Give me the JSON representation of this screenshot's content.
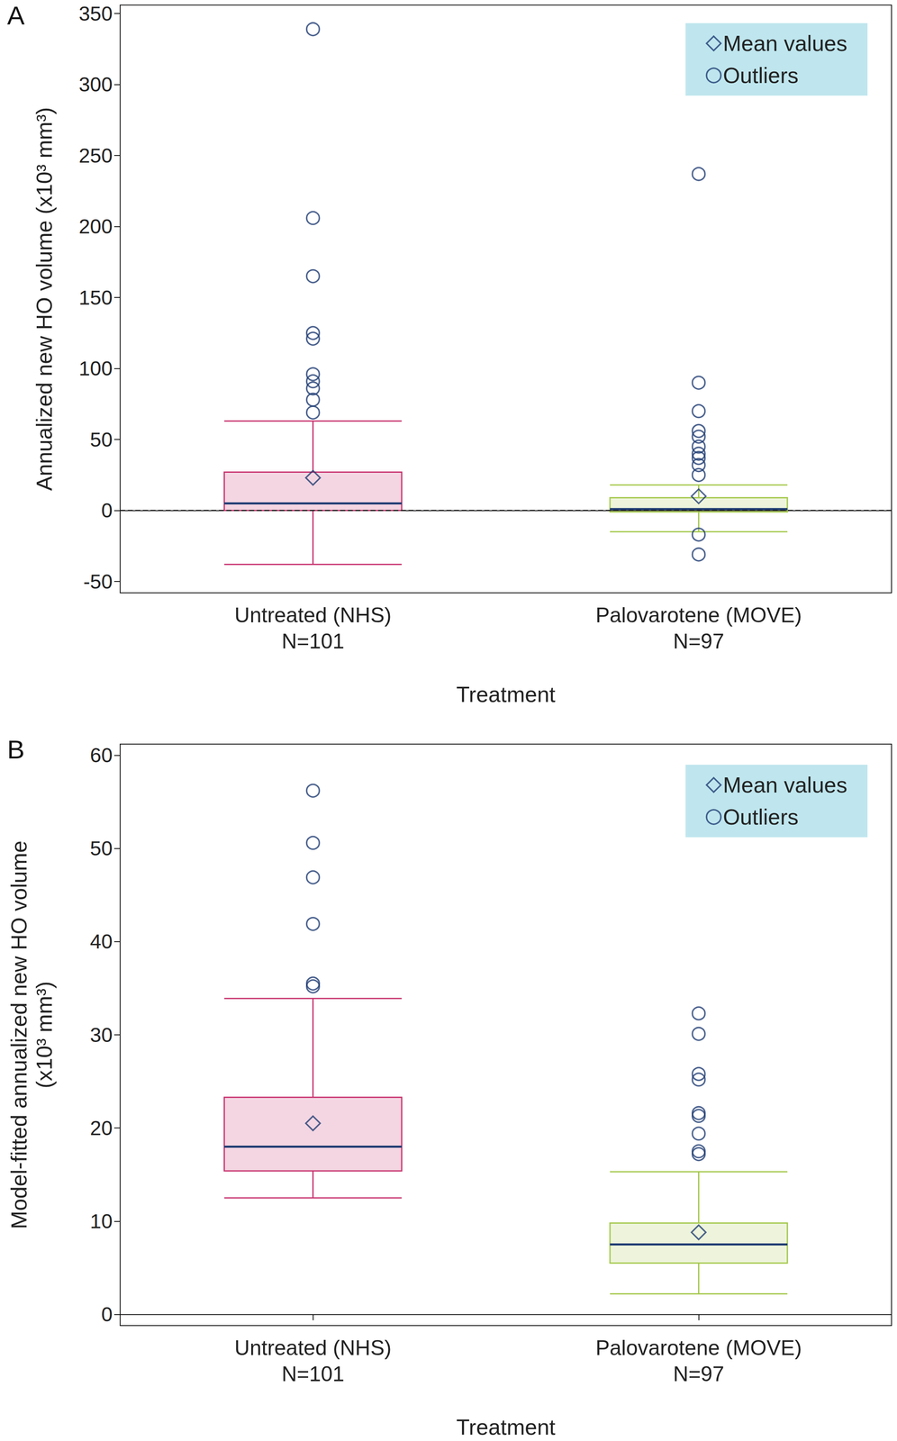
{
  "chart_data": [
    {
      "type": "boxplot",
      "panel": "A",
      "x_label": "Treatment",
      "y_label": "Annualized new HO volume (x10³ mm³)",
      "categories": [
        "Untreated (NHS)\nN=101",
        "Palovarotene (MOVE)\nN=97"
      ],
      "colors": [
        "#c8326e",
        "#a4c84a"
      ],
      "boxes": [
        {
          "low": -38,
          "q1": 0,
          "median": 5,
          "q3": 27,
          "high": 63
        },
        {
          "low": -15,
          "q1": -1,
          "median": 1,
          "q3": 9,
          "high": 18
        }
      ],
      "series": [
        {
          "name": "Mean values",
          "type": "scatter",
          "marker": "diamond",
          "color": "#1f3c73",
          "values": [
            23,
            10
          ]
        },
        {
          "name": "Outliers",
          "type": "scatter",
          "marker": "circle",
          "color": "#1f3c73",
          "values": [
            [
              339,
              206,
              165,
              125,
              121,
              96,
              91,
              86,
              78,
              69
            ],
            [
              237,
              90,
              70,
              56,
              52,
              45,
              40,
              37,
              32,
              25,
              -17,
              -31
            ]
          ]
        }
      ],
      "reference_line": 0,
      "ylim": [
        -58,
        356
      ],
      "yticks": [
        -50,
        0,
        50,
        100,
        150,
        200,
        250,
        300,
        350
      ],
      "legend": "upper right",
      "grid": false
    },
    {
      "type": "boxplot",
      "panel": "B",
      "x_label": "Treatment",
      "y_label": "Model-fitted annualized new HO volume (x10³ mm³)",
      "categories": [
        "Untreated (NHS)\nN=101",
        "Palovarotene (MOVE)\nN=97"
      ],
      "colors": [
        "#c8326e",
        "#a4c84a"
      ],
      "boxes": [
        {
          "low": 12.5,
          "q1": 15.4,
          "median": 18,
          "q3": 23.3,
          "high": 33.9
        },
        {
          "low": 2.2,
          "q1": 5.5,
          "median": 7.5,
          "q3": 9.8,
          "high": 15.3
        }
      ],
      "series": [
        {
          "name": "Mean values",
          "type": "scatter",
          "marker": "diamond",
          "color": "#1f3c73",
          "values": [
            20.5,
            8.8
          ]
        },
        {
          "name": "Outliers",
          "type": "scatter",
          "marker": "circle",
          "color": "#1f3c73",
          "values": [
            [
              56.2,
              50.6,
              46.9,
              41.9,
              35.5,
              35.2
            ],
            [
              32.3,
              30.1,
              25.8,
              25.2,
              21.6,
              21.3,
              19.4,
              17.5,
              17.2
            ]
          ]
        }
      ],
      "ylim": [
        -1.2,
        61.2
      ],
      "yticks": [
        0,
        10,
        20,
        30,
        40,
        50,
        60
      ],
      "legend": "upper right",
      "grid": false
    }
  ]
}
